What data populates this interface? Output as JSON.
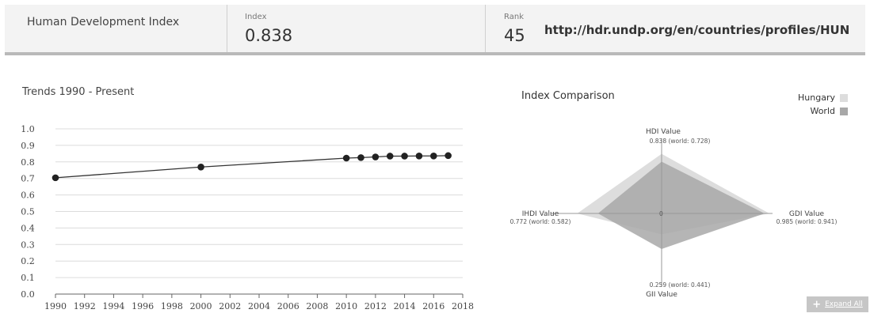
{
  "header": {
    "title": "Human Development Index",
    "index_label": "Index",
    "index_value": "0.838",
    "rank_label": "Rank",
    "rank_value": "45",
    "url": "http://hdr.undp.org/en/countries/profiles/HUN"
  },
  "trends": {
    "title": "Trends 1990 - Present"
  },
  "comparison": {
    "title": "Index Comparison",
    "legend": [
      {
        "label": "Hungary",
        "color": "#dddddd"
      },
      {
        "label": "World",
        "color": "#a8a8a8"
      }
    ],
    "center_label": "0"
  },
  "expand_label": "Expand All",
  "chart_data": [
    {
      "type": "line",
      "title": "Trends 1990 - Present",
      "x": [
        1990,
        2000,
        2010,
        2011,
        2012,
        2013,
        2014,
        2015,
        2016,
        2017
      ],
      "y": [
        0.704,
        0.769,
        0.823,
        0.826,
        0.83,
        0.835,
        0.835,
        0.836,
        0.836,
        0.838
      ],
      "xlim": [
        1990,
        2018
      ],
      "ylim": [
        0.0,
        1.0
      ],
      "xticks": [
        "1990",
        "1992",
        "1994",
        "1996",
        "1998",
        "2000",
        "2002",
        "2004",
        "2006",
        "2008",
        "2010",
        "2012",
        "2014",
        "2016",
        "2018"
      ],
      "yticks": [
        "0.0",
        "0.1",
        "0.2",
        "0.3",
        "0.4",
        "0.5",
        "0.6",
        "0.7",
        "0.8",
        "0.9",
        "1.0"
      ],
      "grid": true,
      "line_color": "#333333"
    },
    {
      "type": "radar",
      "title": "Index Comparison",
      "axes": [
        {
          "name": "HDI Value",
          "label": "0.838 (world: 0.728)",
          "hungary": 0.838,
          "world": 0.728
        },
        {
          "name": "GDI Value",
          "label": "0.985 (world: 0.941)",
          "hungary": 0.985,
          "world": 0.941
        },
        {
          "name": "GII Value",
          "label": "0.259 (world: 0.441)",
          "hungary": 0.259,
          "world": 0.441
        },
        {
          "name": "IHDI Value",
          "label": "0.772 (world: 0.582)",
          "hungary": 0.772,
          "world": 0.582
        }
      ],
      "series": [
        {
          "name": "Hungary",
          "color": "#dddddd"
        },
        {
          "name": "World",
          "color": "#a8a8a8"
        }
      ]
    }
  ]
}
